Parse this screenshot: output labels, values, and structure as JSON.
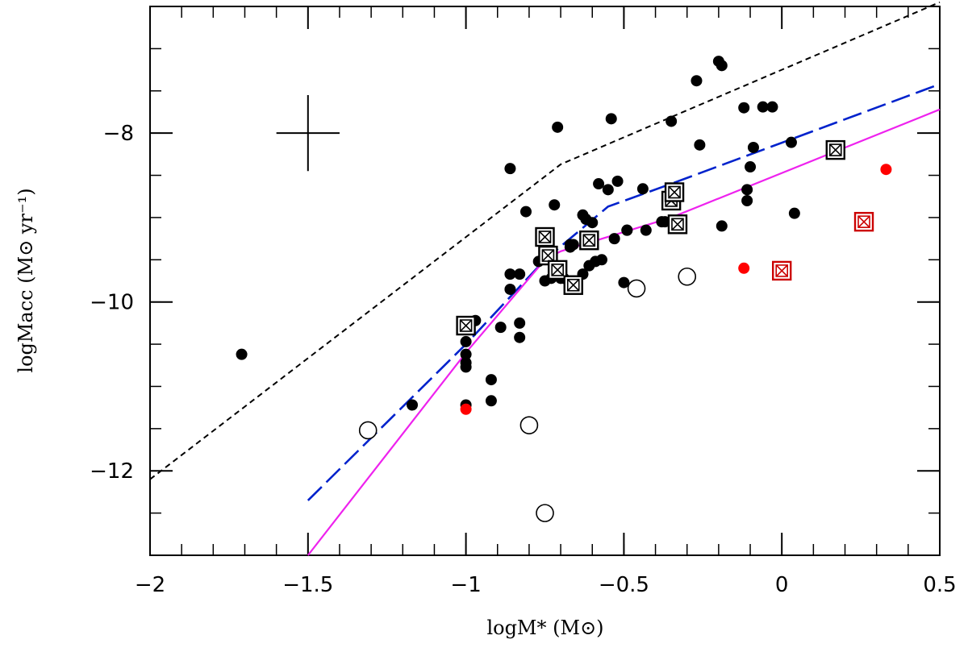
{
  "chart_data": {
    "type": "scatter",
    "title": "",
    "xlabel": "logM* (M⊙)",
    "ylabel": "logMacc (M⊙ yr⁻¹)",
    "xlim": [
      -2,
      0.5
    ],
    "ylim": [
      -13,
      -6.5
    ],
    "x_major_ticks": [
      -2,
      -1.5,
      -1,
      -0.5,
      0,
      0.5
    ],
    "x_tick_labels": [
      "−2",
      "−1.5",
      "−1",
      "−0.5",
      "0",
      "0.5"
    ],
    "y_major_ticks": [
      -12,
      -10,
      -8
    ],
    "y_tick_labels": [
      "−12",
      "−10",
      "−8"
    ],
    "x_minor_step": 0.1,
    "y_minor_step": 0.5,
    "grid": false,
    "error_bar": {
      "x": -1.5,
      "y": -8.0,
      "dx": 0.1,
      "dy": 0.45
    },
    "series": [
      {
        "marker": "filled-circle",
        "color": "#000000",
        "x": [
          -1.71,
          -1.17,
          -1.0,
          -1.0,
          -1.0,
          -1.0,
          -1.0,
          -0.97,
          -0.92,
          -0.92,
          -0.89,
          -0.86,
          -0.86,
          -0.86,
          -0.83,
          -0.83,
          -0.83,
          -0.81,
          -0.77,
          -0.75,
          -0.74,
          -0.73,
          -0.73,
          -0.72,
          -0.71,
          -0.7,
          -0.69,
          -0.67,
          -0.67,
          -0.66,
          -0.63,
          -0.63,
          -0.62,
          -0.61,
          -0.6,
          -0.59,
          -0.58,
          -0.57,
          -0.55,
          -0.54,
          -0.53,
          -0.52,
          -0.5,
          -0.49,
          -0.49,
          -0.44,
          -0.43,
          -0.38,
          -0.37,
          -0.35,
          -0.34,
          -0.32,
          -0.27,
          -0.26,
          -0.2,
          -0.19,
          -0.19,
          -0.12,
          -0.11,
          -0.11,
          -0.1,
          -0.09,
          -0.06,
          -0.03,
          0.03,
          0.04
        ],
        "y": [
          -10.62,
          -11.22,
          -10.47,
          -10.62,
          -10.72,
          -10.77,
          -11.22,
          -10.22,
          -10.92,
          -11.17,
          -10.3,
          -9.67,
          -9.85,
          -8.42,
          -10.25,
          -10.42,
          -9.67,
          -8.93,
          -9.52,
          -9.75,
          -9.47,
          -9.72,
          -9.42,
          -8.85,
          -7.93,
          -9.72,
          -9.72,
          -9.35,
          -9.32,
          -9.32,
          -9.67,
          -8.97,
          -9.02,
          -9.57,
          -9.06,
          -9.52,
          -8.6,
          -9.5,
          -8.67,
          -7.83,
          -9.25,
          -8.57,
          -9.77,
          -9.15,
          -9.15,
          -8.66,
          -9.15,
          -9.05,
          -9.05,
          -7.86,
          -9.1,
          -9.12,
          -7.38,
          -8.14,
          -7.15,
          -7.2,
          -9.1,
          -7.7,
          -8.8,
          -8.67,
          -8.4,
          -8.17,
          -7.69,
          -7.69,
          -8.11,
          -8.95
        ]
      },
      {
        "marker": "filled-circle",
        "color": "#ff0000",
        "x": [
          -1.0,
          -0.12,
          0.33
        ],
        "y": [
          -11.27,
          -9.6,
          -8.43
        ]
      },
      {
        "marker": "open-circle",
        "color": "#000000",
        "x": [
          -1.31,
          -0.8,
          -0.75,
          -0.46,
          -0.3
        ],
        "y": [
          -11.52,
          -11.46,
          -12.5,
          -9.84,
          -9.7
        ]
      },
      {
        "marker": "boxed-x",
        "color": "#000000",
        "x": [
          -1.0,
          -0.75,
          -0.74,
          -0.71,
          -0.66,
          -0.61,
          -0.35,
          -0.34,
          -0.33,
          0.17
        ],
        "y": [
          -10.28,
          -9.23,
          -9.45,
          -9.62,
          -9.8,
          -9.27,
          -8.8,
          -8.7,
          -9.08,
          -8.2
        ]
      },
      {
        "marker": "boxed-x",
        "color": "#cc0000",
        "x": [
          0.0,
          0.26
        ],
        "y": [
          -9.63,
          -9.05
        ]
      }
    ],
    "lines": [
      {
        "style": "dotted",
        "color": "#000000",
        "x": [
          -2.0,
          -0.7,
          0.5
        ],
        "y": [
          -12.1,
          -8.37,
          -6.45
        ]
      },
      {
        "style": "dashed",
        "color": "#0022cc",
        "x": [
          -1.5,
          -1.0,
          -0.75,
          -0.55,
          -0.35,
          0.5
        ],
        "y": [
          -12.35,
          -10.5,
          -9.5,
          -8.87,
          -8.6,
          -7.42
        ]
      },
      {
        "style": "solid",
        "color": "#ee22ee",
        "x": [
          -1.5,
          -1.0,
          -0.75,
          -0.7,
          -0.35,
          0.5
        ],
        "y": [
          -13.0,
          -10.6,
          -9.5,
          -9.4,
          -9.0,
          -7.72
        ]
      }
    ]
  }
}
